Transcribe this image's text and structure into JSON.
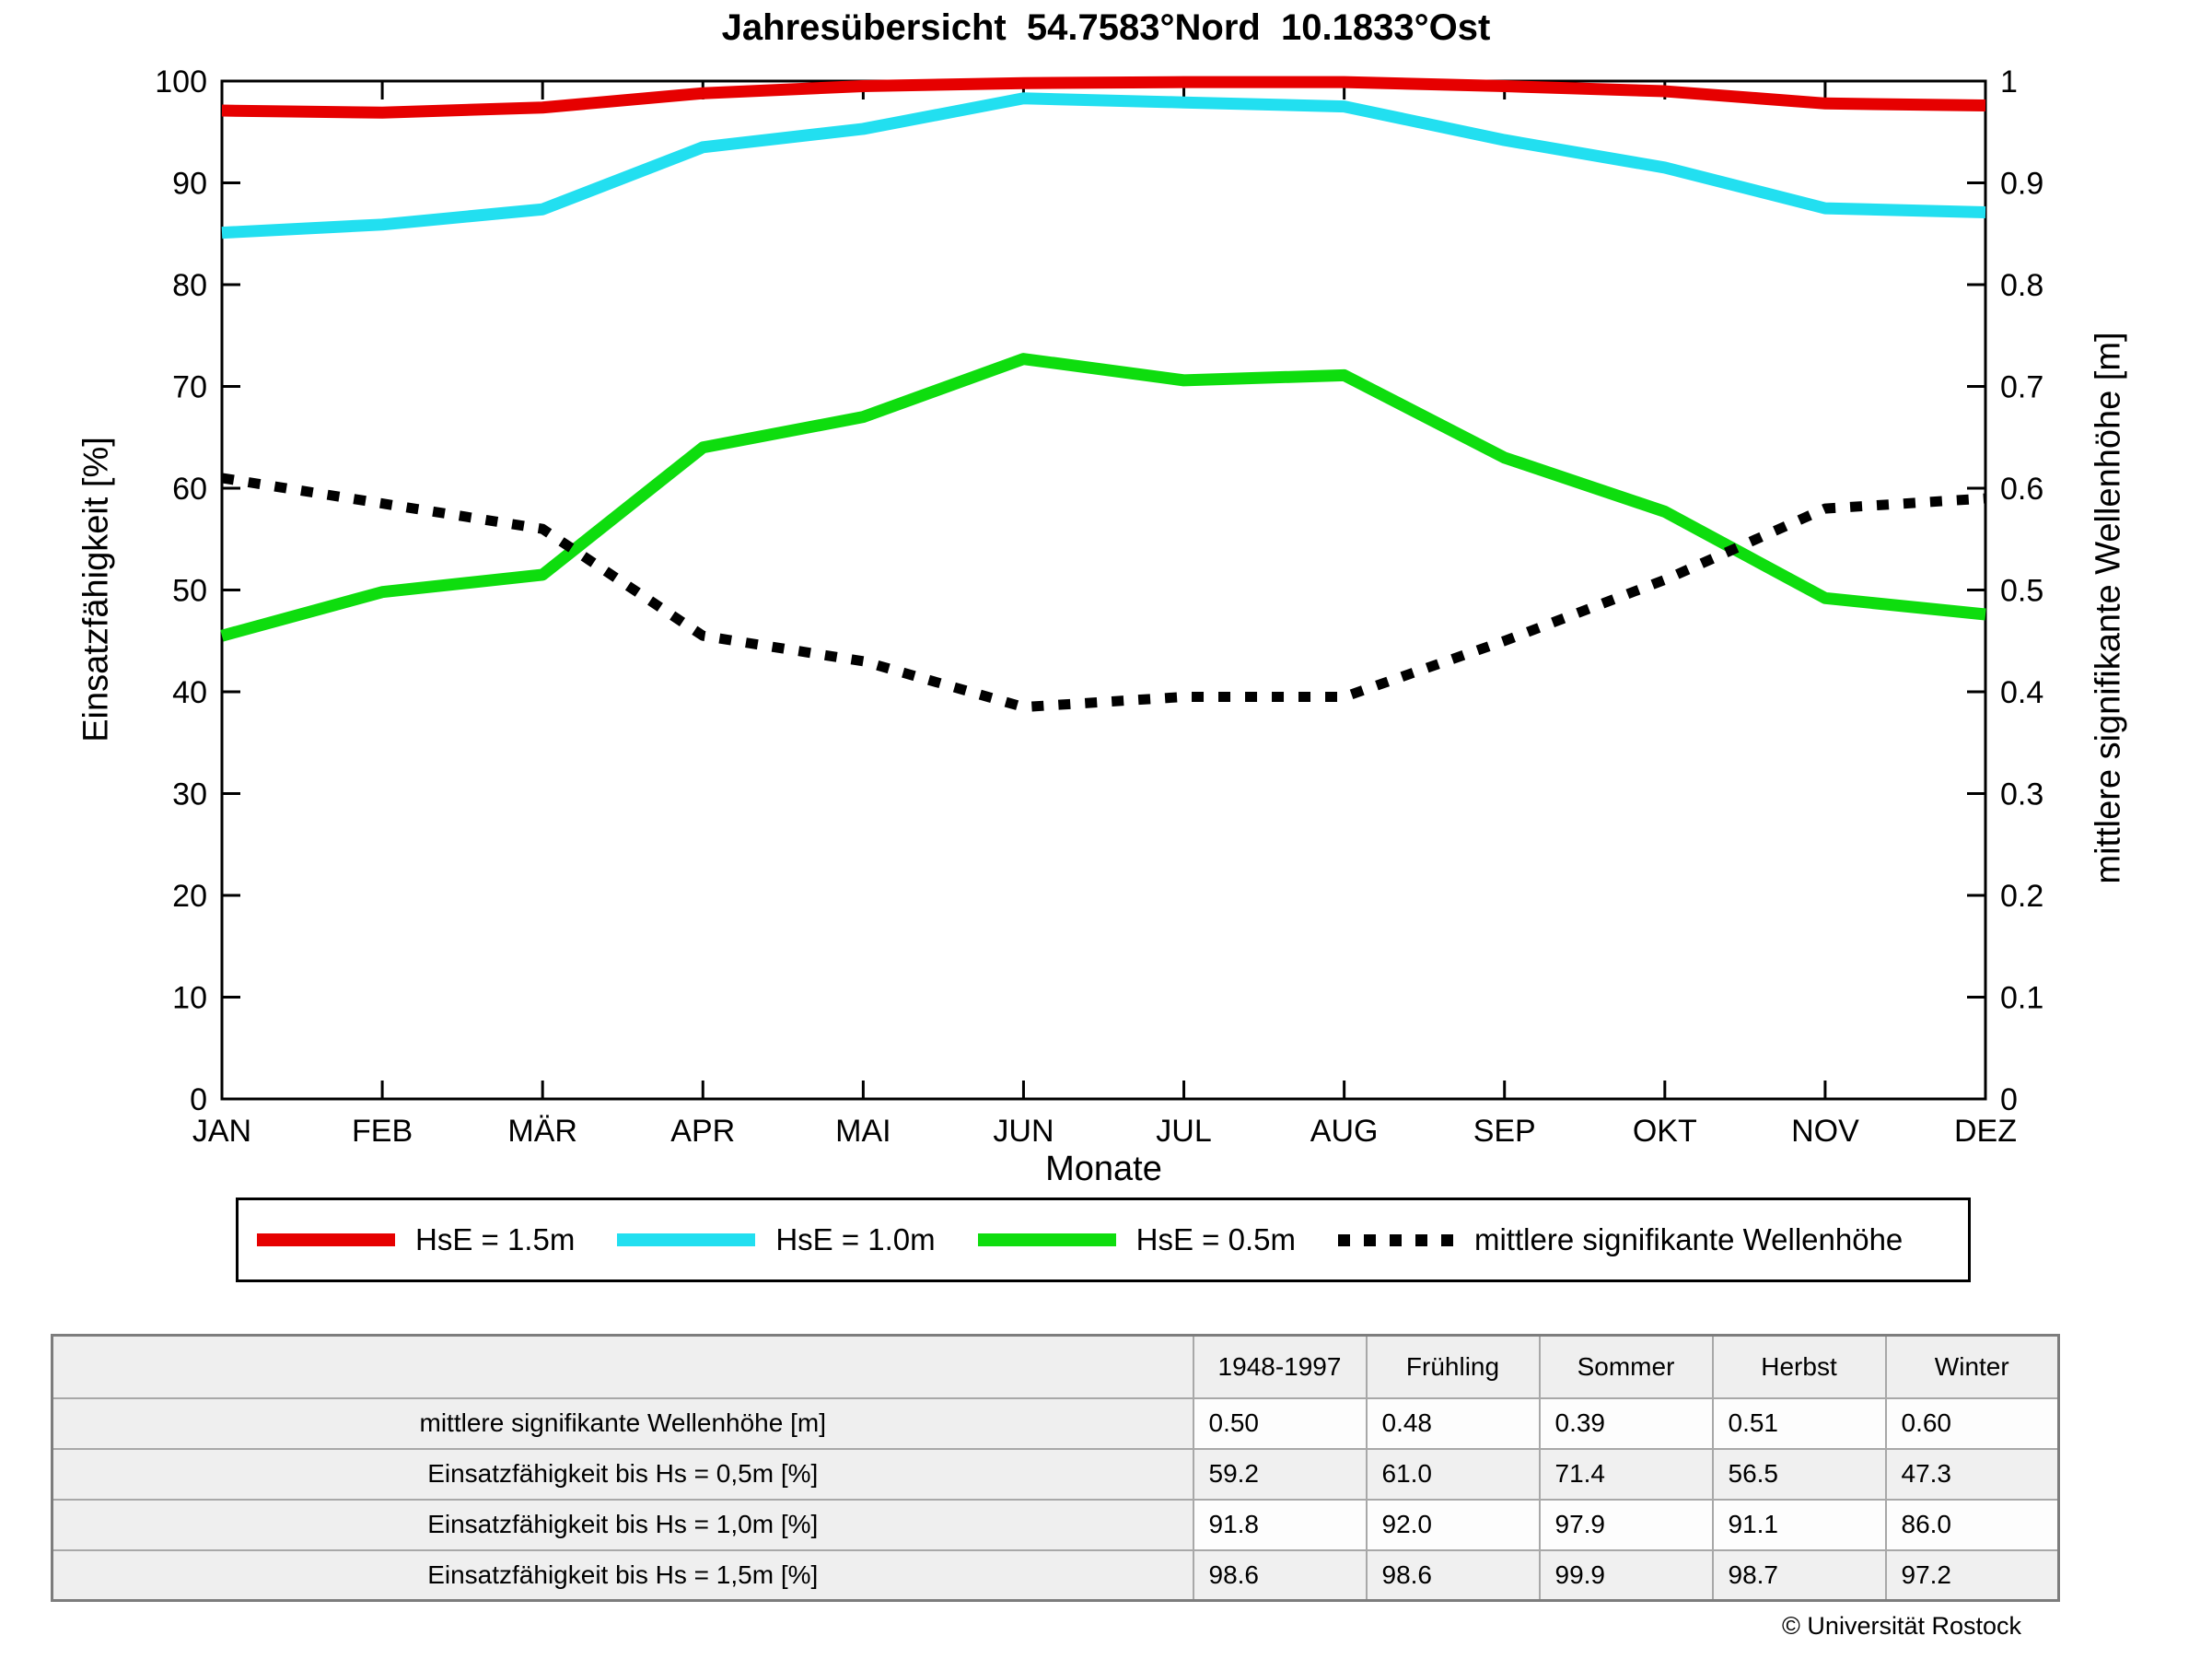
{
  "title": "Jahresübersicht  54.7583°Nord  10.1833°Ost",
  "chart_data": {
    "type": "line",
    "x_categories": [
      "JAN",
      "FEB",
      "MÄR",
      "APR",
      "MAI",
      "JUN",
      "JUL",
      "AUG",
      "SEP",
      "OKT",
      "NOV",
      "DEZ"
    ],
    "xlabel": "Monate",
    "ylabel_left": "Einsatzfähigkeit [%]",
    "ylabel_right": "mittlere signifikante Wellenhöhe [m]",
    "ylim_left": [
      0,
      100
    ],
    "ylim_right": [
      0,
      1
    ],
    "yticks_left": [
      0,
      10,
      20,
      30,
      40,
      50,
      60,
      70,
      80,
      90,
      100
    ],
    "yticks_right": [
      "0",
      "0.1",
      "0.2",
      "0.3",
      "0.4",
      "0.5",
      "0.6",
      "0.7",
      "0.8",
      "0.9",
      "1"
    ],
    "grid": false,
    "legend_position": "bottom",
    "series": [
      {
        "name": "HsE = 1.5m",
        "color": "#e60000",
        "style": "solid",
        "axis": "left",
        "values": [
          97.1,
          96.9,
          97.4,
          98.8,
          99.5,
          99.8,
          99.9,
          99.9,
          99.5,
          99.0,
          97.8,
          97.6
        ]
      },
      {
        "name": "HsE = 1.0m",
        "color": "#22dff0",
        "style": "solid",
        "axis": "left",
        "values": [
          85.1,
          85.9,
          87.4,
          93.5,
          95.3,
          98.3,
          97.9,
          97.5,
          94.2,
          91.5,
          87.5,
          87.1
        ]
      },
      {
        "name": "HsE = 0.5m",
        "color": "#0edd0e",
        "style": "solid",
        "axis": "left",
        "values": [
          45.5,
          49.8,
          51.5,
          64.0,
          67.0,
          72.7,
          70.6,
          71.1,
          63.0,
          57.7,
          49.2,
          47.6
        ]
      },
      {
        "name": "mittlere signifikante Wellenhöhe",
        "color": "#000000",
        "style": "dotted",
        "axis": "right",
        "values": [
          0.61,
          0.585,
          0.56,
          0.455,
          0.43,
          0.385,
          0.395,
          0.395,
          0.45,
          0.51,
          0.58,
          0.59
        ]
      }
    ]
  },
  "table": {
    "column_headers": [
      "1948-1997",
      "Frühling",
      "Sommer",
      "Herbst",
      "Winter"
    ],
    "rows": [
      {
        "label": "mittlere signifikante Wellenhöhe [m]",
        "values": [
          "0.50",
          "0.48",
          "0.39",
          "0.51",
          "0.60"
        ]
      },
      {
        "label": "Einsatzfähigkeit bis Hs = 0,5m [%]",
        "values": [
          "59.2",
          "61.0",
          "71.4",
          "56.5",
          "47.3"
        ]
      },
      {
        "label": "Einsatzfähigkeit bis Hs = 1,0m [%]",
        "values": [
          "91.8",
          "92.0",
          "97.9",
          "91.1",
          "86.0"
        ]
      },
      {
        "label": "Einsatzfähigkeit bis Hs = 1,5m [%]",
        "values": [
          "98.6",
          "98.6",
          "99.9",
          "98.7",
          "97.2"
        ]
      }
    ]
  },
  "footer": {
    "copyright": "© Universität Rostock"
  }
}
